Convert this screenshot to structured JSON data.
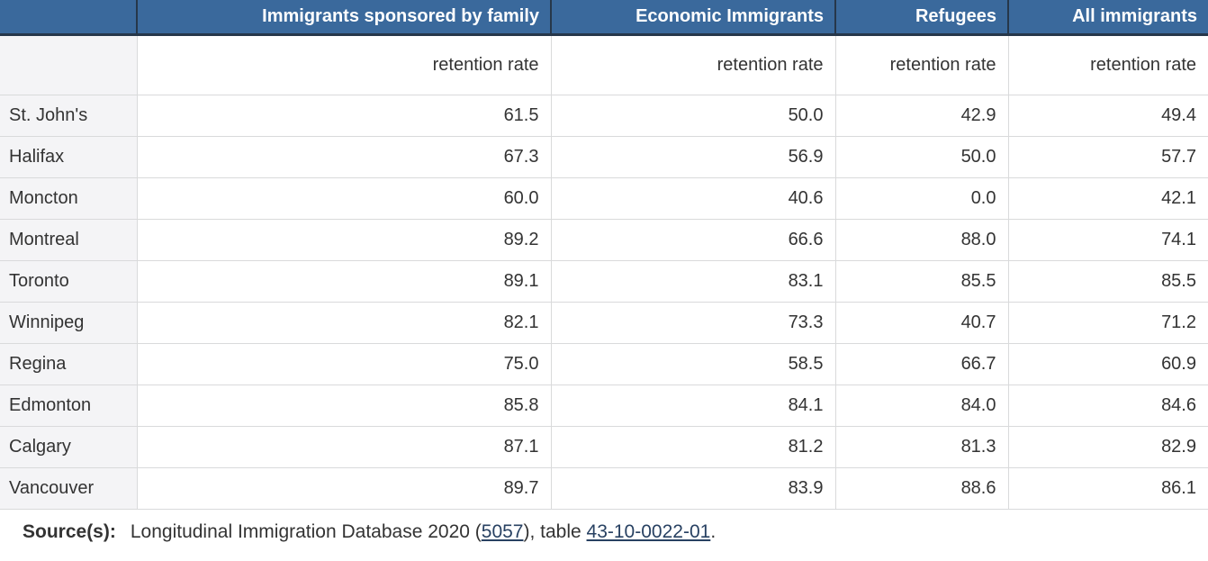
{
  "table": {
    "corner_label": "",
    "column_headers": [
      "Immigrants sponsored by family",
      "Economic Immigrants",
      "Refugees",
      "All immigrants"
    ],
    "subheaders": [
      "retention rate",
      "retention rate",
      "retention rate",
      "retention rate"
    ],
    "rows": [
      {
        "city": "St. John's",
        "values": [
          "61.5",
          "50.0",
          "42.9",
          "49.4"
        ]
      },
      {
        "city": "Halifax",
        "values": [
          "67.3",
          "56.9",
          "50.0",
          "57.7"
        ]
      },
      {
        "city": "Moncton",
        "values": [
          "60.0",
          "40.6",
          "0.0",
          "42.1"
        ]
      },
      {
        "city": "Montreal",
        "values": [
          "89.2",
          "66.6",
          "88.0",
          "74.1"
        ]
      },
      {
        "city": "Toronto",
        "values": [
          "89.1",
          "83.1",
          "85.5",
          "85.5"
        ]
      },
      {
        "city": "Winnipeg",
        "values": [
          "82.1",
          "73.3",
          "40.7",
          "71.2"
        ]
      },
      {
        "city": "Regina",
        "values": [
          "75.0",
          "58.5",
          "66.7",
          "60.9"
        ]
      },
      {
        "city": "Edmonton",
        "values": [
          "85.8",
          "84.1",
          "84.0",
          "84.6"
        ]
      },
      {
        "city": "Calgary",
        "values": [
          "87.1",
          "81.2",
          "81.3",
          "82.9"
        ]
      },
      {
        "city": "Vancouver",
        "values": [
          "89.7",
          "83.9",
          "88.6",
          "86.1"
        ]
      }
    ]
  },
  "source": {
    "label": "Source(s):",
    "text_before": "Longitudinal Immigration Database 2020 (",
    "link_survey": "5057",
    "text_middle": "), table ",
    "link_table": "43-10-0022-01",
    "text_after": "."
  },
  "colors": {
    "header_bg": "#3a699c",
    "header_text": "#ffffff",
    "header_border": "#26374a",
    "cell_border": "#d9dadb",
    "row_label_bg": "#f4f4f6",
    "body_text": "#333333",
    "link": "#284162"
  },
  "chart_data": {
    "type": "table",
    "title": "",
    "row_header": "city",
    "categories": [
      "St. John's",
      "Halifax",
      "Moncton",
      "Montreal",
      "Toronto",
      "Winnipeg",
      "Regina",
      "Edmonton",
      "Calgary",
      "Vancouver"
    ],
    "value_label": "retention rate",
    "series": [
      {
        "name": "Immigrants sponsored by family",
        "values": [
          61.5,
          67.3,
          60.0,
          89.2,
          89.1,
          82.1,
          75.0,
          85.8,
          87.1,
          89.7
        ]
      },
      {
        "name": "Economic Immigrants",
        "values": [
          50.0,
          56.9,
          40.6,
          66.6,
          83.1,
          73.3,
          58.5,
          84.1,
          81.2,
          83.9
        ]
      },
      {
        "name": "Refugees",
        "values": [
          42.9,
          50.0,
          0.0,
          88.0,
          85.5,
          40.7,
          66.7,
          84.0,
          81.3,
          88.6
        ]
      },
      {
        "name": "All immigrants",
        "values": [
          49.4,
          57.7,
          42.1,
          74.1,
          85.5,
          71.2,
          60.9,
          84.6,
          82.9,
          86.1
        ]
      }
    ],
    "source": "Longitudinal Immigration Database 2020 (5057), table 43-10-0022-01."
  }
}
